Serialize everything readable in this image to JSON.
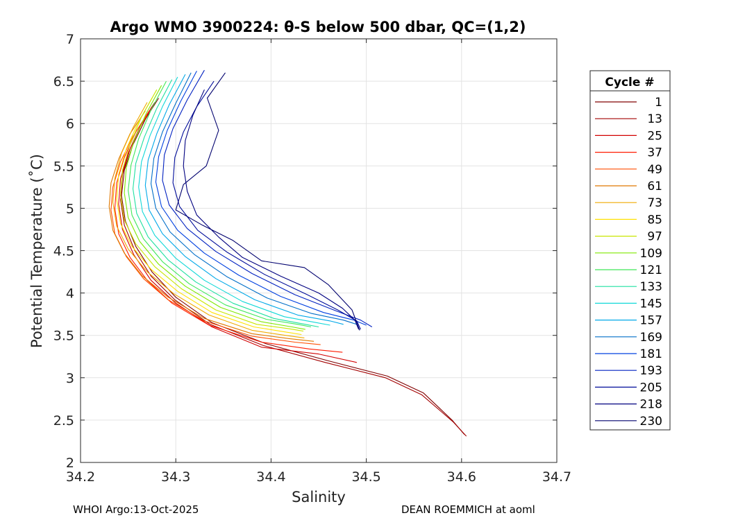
{
  "chart_data": {
    "type": "line",
    "title": "Argo WMO 3900224: θ-S below 500 dbar,  QC=(1,2)",
    "xlabel": "Salinity",
    "ylabel": "Potential Temperature (˚C)",
    "xlim": [
      34.2,
      34.7
    ],
    "ylim": [
      2,
      7
    ],
    "xticks": [
      34.2,
      34.3,
      34.4,
      34.5,
      34.6,
      34.7
    ],
    "xtick_labels": [
      "34.2",
      "34.3",
      "34.4",
      "34.5",
      "34.6",
      "34.7"
    ],
    "yticks": [
      2,
      2.5,
      3,
      3.5,
      4,
      4.5,
      5,
      5.5,
      6,
      6.5,
      7
    ],
    "ytick_labels": [
      "2",
      "2.5",
      "3",
      "3.5",
      "4",
      "4.5",
      "5",
      "5.5",
      "6",
      "6.5",
      "7"
    ],
    "grid": true,
    "legend": {
      "title": "Cycle #",
      "placement": "outside-right",
      "entries": [
        "1",
        "13",
        "25",
        "37",
        "49",
        "61",
        "73",
        "85",
        "97",
        "109",
        "121",
        "133",
        "145",
        "157",
        "169",
        "181",
        "193",
        "205",
        "218",
        "230"
      ],
      "colors": [
        "#800000",
        "#a30000",
        "#d10000",
        "#ff1a00",
        "#ff4d00",
        "#e07800",
        "#f0aa00",
        "#ffe100",
        "#c8e600",
        "#7fe800",
        "#3ee858",
        "#1ee0a0",
        "#10d8d8",
        "#00a8e8",
        "#006ec8",
        "#0040e0",
        "#0020c0",
        "#000c9a",
        "#000080",
        "#00006e"
      ]
    },
    "series": [
      {
        "name": "1",
        "color": "#800000",
        "x": [
          34.282,
          34.268,
          34.255,
          34.246,
          34.243,
          34.247,
          34.258,
          34.275,
          34.3,
          34.338,
          34.395,
          34.46,
          34.522,
          34.56,
          34.59,
          34.603
        ],
        "y": [
          6.3,
          6.05,
          5.75,
          5.45,
          5.15,
          4.85,
          4.55,
          4.25,
          3.95,
          3.65,
          3.4,
          3.2,
          3.02,
          2.82,
          2.5,
          2.33
        ]
      },
      {
        "name": "13",
        "color": "#a30000",
        "x": [
          34.278,
          34.264,
          34.252,
          34.244,
          34.242,
          34.246,
          34.257,
          34.274,
          34.299,
          34.336,
          34.392,
          34.457,
          34.52,
          34.558,
          34.591,
          34.605
        ],
        "y": [
          6.25,
          6.0,
          5.7,
          5.4,
          5.1,
          4.8,
          4.5,
          4.2,
          3.92,
          3.63,
          3.38,
          3.18,
          3.0,
          2.8,
          2.48,
          2.31
        ]
      },
      {
        "name": "25",
        "color": "#d10000",
        "x": [
          34.275,
          34.262,
          34.25,
          34.242,
          34.24,
          34.244,
          34.256,
          34.274,
          34.3,
          34.338,
          34.39,
          34.45,
          34.49
        ],
        "y": [
          6.2,
          5.95,
          5.65,
          5.35,
          5.05,
          4.75,
          4.45,
          4.15,
          3.88,
          3.6,
          3.36,
          3.28,
          3.18
        ]
      },
      {
        "name": "37",
        "color": "#ff1a00",
        "x": [
          34.272,
          34.258,
          34.246,
          34.238,
          34.236,
          34.24,
          34.252,
          34.27,
          34.296,
          34.335,
          34.39,
          34.44,
          34.475
        ],
        "y": [
          6.15,
          5.9,
          5.6,
          5.3,
          5.0,
          4.7,
          4.42,
          4.15,
          3.88,
          3.62,
          3.42,
          3.34,
          3.3
        ]
      },
      {
        "name": "49",
        "color": "#ff4d00",
        "x": [
          34.27,
          34.255,
          34.242,
          34.234,
          34.232,
          34.236,
          34.248,
          34.266,
          34.292,
          34.33,
          34.38,
          34.425,
          34.452
        ],
        "y": [
          6.1,
          5.85,
          5.55,
          5.25,
          4.98,
          4.7,
          4.43,
          4.17,
          3.92,
          3.67,
          3.49,
          3.42,
          3.39
        ]
      },
      {
        "name": "61",
        "color": "#e07800",
        "x": [
          34.268,
          34.252,
          34.24,
          34.232,
          34.23,
          34.234,
          34.246,
          34.265,
          34.292,
          34.33,
          34.38,
          34.42,
          34.445
        ],
        "y": [
          6.15,
          5.88,
          5.58,
          5.3,
          5.02,
          4.74,
          4.47,
          4.2,
          3.95,
          3.7,
          3.52,
          3.46,
          3.43
        ]
      },
      {
        "name": "73",
        "color": "#f0aa00",
        "x": [
          34.27,
          34.255,
          34.243,
          34.236,
          34.234,
          34.238,
          34.25,
          34.27,
          34.298,
          34.335,
          34.38,
          34.415,
          34.435
        ],
        "y": [
          6.25,
          5.95,
          5.65,
          5.35,
          5.07,
          4.79,
          4.52,
          4.25,
          3.99,
          3.74,
          3.56,
          3.5,
          3.47
        ]
      },
      {
        "name": "85",
        "color": "#ffe100",
        "x": [
          34.275,
          34.26,
          34.248,
          34.24,
          34.238,
          34.242,
          34.254,
          34.274,
          34.302,
          34.338,
          34.382,
          34.415,
          34.432
        ],
        "y": [
          6.3,
          6.0,
          5.7,
          5.4,
          5.1,
          4.82,
          4.55,
          4.28,
          4.02,
          3.77,
          3.6,
          3.54,
          3.51
        ]
      },
      {
        "name": "97",
        "color": "#c8e600",
        "x": [
          34.28,
          34.264,
          34.252,
          34.244,
          34.242,
          34.246,
          34.258,
          34.278,
          34.306,
          34.342,
          34.385,
          34.418,
          34.434
        ],
        "y": [
          6.4,
          6.08,
          5.75,
          5.45,
          5.15,
          4.86,
          4.58,
          4.31,
          4.05,
          3.8,
          3.63,
          3.58,
          3.55
        ]
      },
      {
        "name": "109",
        "color": "#7fe800",
        "x": [
          34.285,
          34.269,
          34.256,
          34.248,
          34.246,
          34.25,
          34.262,
          34.282,
          34.31,
          34.347,
          34.39,
          34.422,
          34.436
        ],
        "y": [
          6.45,
          6.12,
          5.79,
          5.48,
          5.18,
          4.89,
          4.61,
          4.34,
          4.08,
          3.83,
          3.66,
          3.6,
          3.57
        ]
      },
      {
        "name": "121",
        "color": "#3ee858",
        "x": [
          34.29,
          34.274,
          34.261,
          34.253,
          34.25,
          34.254,
          34.266,
          34.286,
          34.314,
          34.352,
          34.395,
          34.428,
          34.442
        ],
        "y": [
          6.5,
          6.16,
          5.82,
          5.51,
          5.21,
          4.92,
          4.64,
          4.37,
          4.11,
          3.86,
          3.69,
          3.63,
          3.6
        ]
      },
      {
        "name": "133",
        "color": "#1ee0a0",
        "x": [
          34.296,
          34.28,
          34.267,
          34.258,
          34.255,
          34.259,
          34.271,
          34.292,
          34.321,
          34.36,
          34.403,
          34.436,
          34.45
        ],
        "y": [
          6.52,
          6.18,
          5.84,
          5.53,
          5.23,
          4.94,
          4.66,
          4.39,
          4.13,
          3.88,
          3.7,
          3.63,
          3.6
        ]
      },
      {
        "name": "145",
        "color": "#10d8d8",
        "x": [
          34.302,
          34.286,
          34.273,
          34.264,
          34.261,
          34.265,
          34.278,
          34.3,
          34.33,
          34.37,
          34.414,
          34.448,
          34.462
        ],
        "y": [
          6.55,
          6.2,
          5.86,
          5.55,
          5.25,
          4.96,
          4.68,
          4.41,
          4.15,
          3.9,
          3.72,
          3.65,
          3.62
        ]
      },
      {
        "name": "157",
        "color": "#00a8e8",
        "x": [
          34.31,
          34.293,
          34.28,
          34.271,
          34.268,
          34.272,
          34.286,
          34.31,
          34.342,
          34.383,
          34.428,
          34.462,
          34.476
        ],
        "y": [
          6.58,
          6.22,
          5.88,
          5.57,
          5.27,
          4.98,
          4.7,
          4.43,
          4.17,
          3.92,
          3.74,
          3.67,
          3.63
        ]
      },
      {
        "name": "169",
        "color": "#006ec8",
        "x": [
          34.316,
          34.3,
          34.286,
          34.277,
          34.274,
          34.279,
          34.294,
          34.32,
          34.354,
          34.396,
          34.442,
          34.476,
          34.49
        ],
        "y": [
          6.6,
          6.24,
          5.9,
          5.59,
          5.29,
          5.0,
          4.72,
          4.45,
          4.19,
          3.94,
          3.76,
          3.68,
          3.63
        ]
      },
      {
        "name": "181",
        "color": "#0040e0",
        "x": [
          34.322,
          34.305,
          34.291,
          34.282,
          34.279,
          34.285,
          34.302,
          34.33,
          34.366,
          34.41,
          34.455,
          34.487,
          34.5
        ],
        "y": [
          6.62,
          6.26,
          5.92,
          5.61,
          5.31,
          5.02,
          4.74,
          4.47,
          4.21,
          3.96,
          3.77,
          3.68,
          3.62
        ]
      },
      {
        "name": "193",
        "color": "#0020c0",
        "x": [
          34.33,
          34.312,
          34.297,
          34.288,
          34.286,
          34.293,
          34.312,
          34.342,
          34.38,
          34.425,
          34.468,
          34.494,
          34.506
        ],
        "y": [
          6.63,
          6.28,
          5.94,
          5.63,
          5.33,
          5.04,
          4.76,
          4.49,
          4.23,
          3.98,
          3.79,
          3.68,
          3.6
        ]
      },
      {
        "name": "205",
        "color": "#000c9a",
        "x": [
          34.34,
          34.322,
          34.308,
          34.299,
          34.297,
          34.304,
          34.323,
          34.354,
          34.393,
          34.438,
          34.47,
          34.49,
          34.494
        ],
        "y": [
          6.5,
          6.2,
          5.9,
          5.6,
          5.3,
          5.02,
          4.74,
          4.48,
          4.22,
          3.98,
          3.8,
          3.67,
          3.57
        ]
      },
      {
        "name": "218",
        "color": "#000080",
        "x": [
          34.33,
          34.318,
          34.31,
          34.308,
          34.312,
          34.322,
          34.345,
          34.37,
          34.41,
          34.45,
          34.475,
          34.488,
          34.492
        ],
        "y": [
          6.4,
          6.1,
          5.8,
          5.5,
          5.2,
          4.92,
          4.66,
          4.42,
          4.2,
          4.0,
          3.82,
          3.68,
          3.57
        ]
      },
      {
        "name": "230",
        "color": "#00006e",
        "x": [
          34.352,
          34.333,
          34.345,
          34.332,
          34.308,
          34.3,
          34.328,
          34.36,
          34.39,
          34.435,
          34.46,
          34.485,
          34.493
        ],
        "y": [
          6.6,
          6.3,
          5.92,
          5.5,
          5.28,
          4.98,
          4.8,
          4.62,
          4.38,
          4.3,
          4.1,
          3.8,
          3.56
        ]
      }
    ]
  },
  "footer": {
    "left": "WHOI Argo:13-Oct-2025",
    "right": "DEAN ROEMMICH at aoml"
  }
}
